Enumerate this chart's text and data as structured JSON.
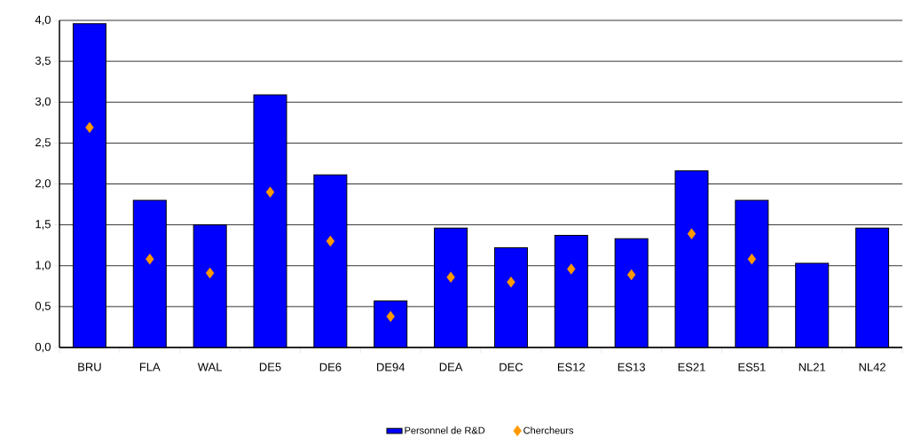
{
  "chart_data": {
    "type": "bar",
    "categories": [
      "BRU",
      "FLA",
      "WAL",
      "DE5",
      "DE6",
      "DE94",
      "DEA",
      "DEC",
      "ES12",
      "ES13",
      "ES21",
      "ES51",
      "NL21",
      "NL42"
    ],
    "series": [
      {
        "name": "Personnel de R&D",
        "color": "#0000ff",
        "values": [
          3.96,
          1.8,
          1.5,
          3.09,
          2.11,
          0.57,
          1.46,
          1.22,
          1.37,
          1.33,
          2.16,
          1.8,
          1.03,
          1.46
        ]
      },
      {
        "name": "Chercheurs",
        "type": "scatter",
        "color": "#ff9900",
        "values": [
          2.69,
          1.08,
          0.91,
          1.9,
          1.3,
          0.38,
          0.86,
          0.8,
          0.96,
          0.89,
          1.39,
          1.08,
          null,
          null
        ]
      }
    ],
    "ylim": [
      0,
      4
    ],
    "yticks": [
      {
        "value": 0,
        "label": "0,0"
      },
      {
        "value": 0.5,
        "label": "0,5"
      },
      {
        "value": 1,
        "label": "1,0"
      },
      {
        "value": 1.5,
        "label": "1,5"
      },
      {
        "value": 2,
        "label": "2,0"
      },
      {
        "value": 2.5,
        "label": "2,5"
      },
      {
        "value": 3,
        "label": "3,0"
      },
      {
        "value": 3.5,
        "label": "3,5"
      },
      {
        "value": 4,
        "label": "4,0"
      }
    ],
    "grid": "y",
    "legend": "bottom",
    "marker": "diamond"
  }
}
